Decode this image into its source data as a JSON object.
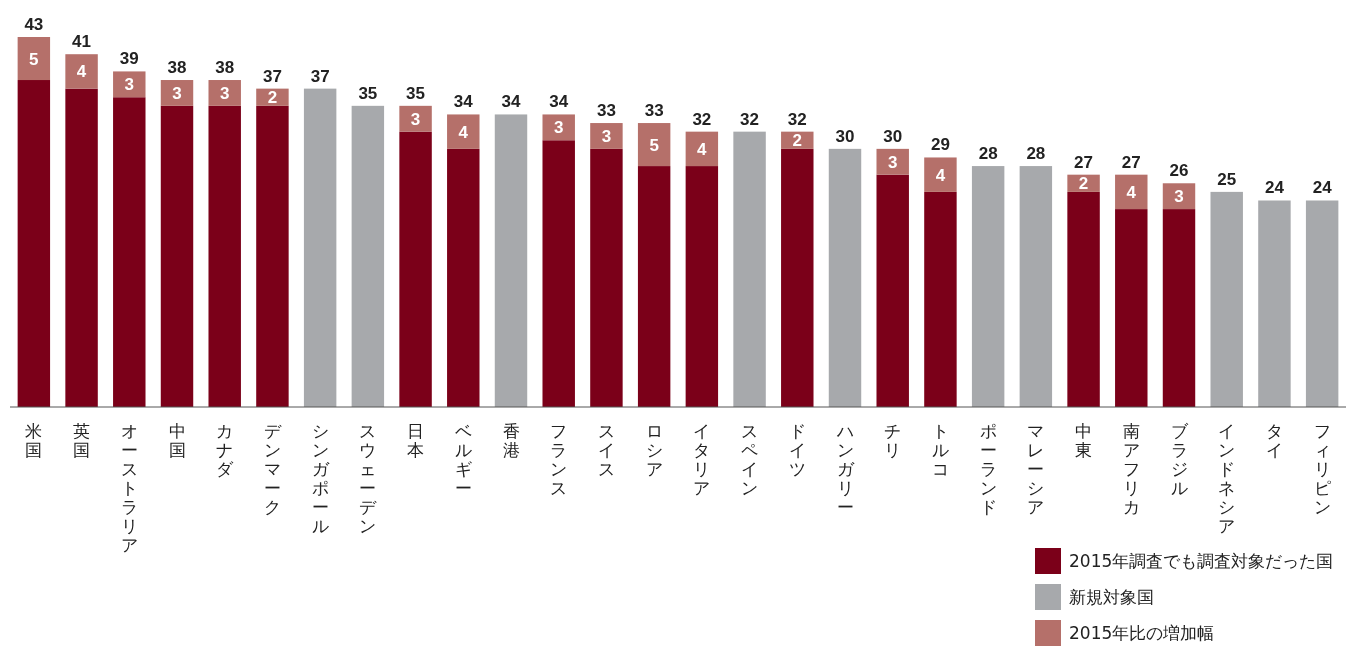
{
  "chart_data": {
    "type": "bar",
    "stacked": true,
    "legend": "bottom right",
    "categories": [
      "米国",
      "英国",
      "オーストラリア",
      "中国",
      "カナダ",
      "デンマーク",
      "シンガポール",
      "スウェーデン",
      "日本",
      "ベルギー",
      "香港",
      "フランス",
      "スイス",
      "ロシア",
      "イタリア",
      "スペイン",
      "ドイツ",
      "ハンガリー",
      "チリ",
      "トルコ",
      "ポーランド",
      "マレーシア",
      "中東",
      "南アフリカ",
      "ブラジル",
      "インドネシア",
      "タイ",
      "フィリピン"
    ],
    "series": [
      {
        "name": "2015年調査でも調査対象だった国",
        "color": "#7b0019",
        "values": [
          38,
          37,
          36,
          35,
          35,
          35,
          null,
          null,
          32,
          30,
          null,
          31,
          30,
          28,
          28,
          null,
          30,
          null,
          27,
          25,
          null,
          null,
          25,
          23,
          23,
          null,
          null,
          null
        ]
      },
      {
        "name": "新規対象国",
        "color": "#a7a9ac",
        "values": [
          null,
          null,
          null,
          null,
          null,
          null,
          37,
          35,
          null,
          null,
          34,
          null,
          null,
          null,
          null,
          32,
          null,
          30,
          null,
          null,
          28,
          28,
          null,
          null,
          null,
          25,
          24,
          24
        ]
      },
      {
        "name": "2015年比の増加幅",
        "color": "#b5706a",
        "values": [
          5,
          4,
          3,
          3,
          3,
          2,
          null,
          null,
          3,
          4,
          null,
          3,
          3,
          5,
          4,
          null,
          2,
          null,
          3,
          4,
          null,
          null,
          2,
          4,
          3,
          null,
          null,
          null
        ],
        "value_labels": [
          "5",
          "4",
          "3",
          "3",
          "3",
          "2",
          null,
          null,
          "3",
          "4",
          null,
          "3",
          "3",
          "5",
          "4",
          null,
          "2",
          null,
          "3",
          "4",
          null,
          null,
          "2",
          "4",
          "3",
          null,
          null,
          null
        ]
      }
    ],
    "totals": [
      "43",
      "41",
      "39",
      "38",
      "38",
      "37",
      "37",
      "35",
      "35",
      "34",
      "34",
      "34",
      "33",
      "33",
      "32",
      "32",
      "32",
      "30",
      "30",
      "29",
      "28",
      "28",
      "27",
      "27",
      "26",
      "25",
      "24",
      "24"
    ]
  }
}
